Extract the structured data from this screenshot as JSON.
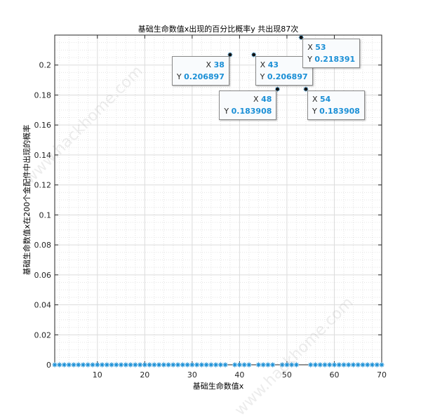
{
  "chart_data": {
    "type": "scatter",
    "title": "基础生命数值x出现的百分比概率y    共出现87次",
    "xlabel": "基础生命数值x",
    "ylabel": "基础生命数值x在200个金配件中出现的概率",
    "xlim": [
      1,
      70
    ],
    "ylim": [
      0,
      0.22
    ],
    "xticks": [
      10,
      20,
      30,
      40,
      50,
      60,
      70
    ],
    "yticks": [
      0,
      0.02,
      0.04,
      0.06,
      0.08,
      0.1,
      0.12,
      0.14,
      0.16,
      0.18,
      0.2
    ],
    "grid": "major and minor",
    "marker": "*",
    "color": "#1a8fd6",
    "nonzero_points": [
      {
        "x": 38,
        "y": 0.206897
      },
      {
        "x": 43,
        "y": 0.206897
      },
      {
        "x": 48,
        "y": 0.183908
      },
      {
        "x": 53,
        "y": 0.218391
      },
      {
        "x": 54,
        "y": 0.183908
      }
    ],
    "zero_x_range": [
      1,
      70
    ],
    "datatips": [
      {
        "x": "38",
        "y": "0.206897"
      },
      {
        "x": "43",
        "y": "0.206897"
      },
      {
        "x": "48",
        "y": "0.183908"
      },
      {
        "x": "53",
        "y": "0.218391"
      },
      {
        "x": "54",
        "y": "0.183908"
      }
    ],
    "datatip_labels": {
      "x": "X",
      "y": "Y"
    }
  },
  "watermark": "www.hackhome.com"
}
